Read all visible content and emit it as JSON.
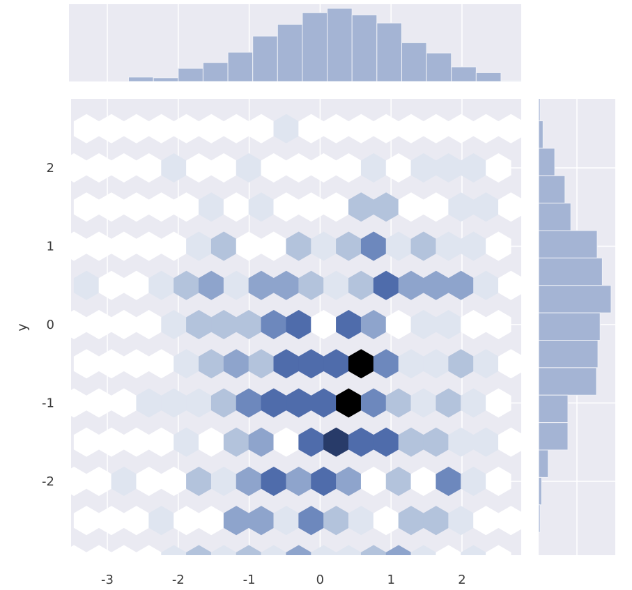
{
  "chart_data": {
    "type": "hexbin-jointplot",
    "xlabel": "",
    "ylabel": "y",
    "xlim": [
      -3.5,
      2.8
    ],
    "ylim": [
      -2.95,
      2.85
    ],
    "x_ticks": [
      -3,
      -2,
      -1,
      0,
      1,
      2
    ],
    "y_ticks": [
      -2,
      -1,
      0,
      1,
      2
    ],
    "x_tick_labels": [
      "-3",
      "-2",
      "-1",
      "0",
      "1",
      "2"
    ],
    "y_tick_labels": [
      "-2",
      "-1",
      "0",
      "1",
      "2"
    ],
    "grid": true,
    "hexbin": {
      "max_count": 10,
      "col_width": 0.352,
      "row_height": 0.5,
      "x_origin": -3.47,
      "y_origin": 0.0,
      "rows": [
        {
          "row": 5,
          "y": 2.5,
          "odd": true,
          "counts": [
            0,
            0,
            0,
            0,
            0,
            0,
            0,
            0,
            1,
            0,
            0,
            0,
            0,
            0,
            0,
            0,
            0,
            0
          ]
        },
        {
          "row": 4,
          "y": 2.0,
          "odd": false,
          "counts": [
            0,
            0,
            0,
            0,
            1,
            0,
            0,
            1,
            0,
            0,
            0,
            0,
            1,
            0,
            1,
            1,
            1,
            0
          ]
        },
        {
          "row": 3,
          "y": 1.5,
          "odd": true,
          "counts": [
            0,
            0,
            0,
            0,
            0,
            1,
            0,
            1,
            0,
            0,
            0,
            2,
            2,
            0,
            0,
            1,
            1,
            0
          ]
        },
        {
          "row": 2,
          "y": 1.0,
          "odd": false,
          "counts": [
            0,
            0,
            0,
            0,
            0,
            1,
            2,
            0,
            0,
            2,
            1,
            2,
            4,
            1,
            2,
            1,
            1,
            0
          ]
        },
        {
          "row": 1,
          "y": 0.5,
          "odd": true,
          "counts": [
            1,
            0,
            0,
            1,
            2,
            3,
            1,
            3,
            3,
            2,
            1,
            2,
            5,
            3,
            3,
            3,
            1,
            0
          ]
        },
        {
          "row": 0,
          "y": 0.0,
          "odd": false,
          "counts": [
            0,
            0,
            0,
            0,
            1,
            2,
            2,
            2,
            4,
            5,
            0,
            5,
            3,
            0,
            1,
            1,
            0,
            0
          ]
        },
        {
          "row": -1,
          "y": -0.5,
          "odd": true,
          "counts": [
            0,
            0,
            0,
            0,
            1,
            2,
            3,
            2,
            5,
            6,
            6,
            10,
            4,
            1,
            1,
            2,
            1,
            0
          ]
        },
        {
          "row": -2,
          "y": -1.0,
          "odd": false,
          "counts": [
            0,
            0,
            0,
            1,
            1,
            1,
            2,
            4,
            6,
            5,
            5,
            10,
            4,
            2,
            1,
            2,
            1,
            0
          ]
        },
        {
          "row": -3,
          "y": -1.5,
          "odd": true,
          "counts": [
            0,
            0,
            0,
            0,
            1,
            0,
            2,
            3,
            0,
            6,
            8,
            5,
            6,
            2,
            2,
            1,
            1,
            0
          ]
        },
        {
          "row": -4,
          "y": -2.0,
          "odd": false,
          "counts": [
            0,
            0,
            1,
            0,
            0,
            2,
            1,
            3,
            5,
            3,
            5,
            3,
            0,
            2,
            0,
            4,
            1,
            0
          ]
        },
        {
          "row": -5,
          "y": -2.5,
          "odd": true,
          "counts": [
            0,
            0,
            0,
            1,
            0,
            0,
            3,
            3,
            1,
            4,
            2,
            1,
            0,
            2,
            2,
            1,
            0,
            0
          ]
        },
        {
          "row": -6,
          "y": -3.0,
          "odd": false,
          "counts": [
            0,
            0,
            0,
            0,
            1,
            2,
            1,
            2,
            1,
            3,
            1,
            1,
            2,
            3,
            1,
            0,
            1,
            0
          ]
        }
      ]
    },
    "x_marginal": {
      "type": "histogram",
      "bins": [
        -3.4,
        -3.05,
        -2.7,
        -2.35,
        -2.0,
        -1.65,
        -1.3,
        -0.95,
        -0.6,
        -0.25,
        0.1,
        0.45,
        0.8,
        1.15,
        1.5,
        1.85,
        2.2,
        2.55
      ],
      "counts": [
        0,
        0,
        6,
        5,
        18,
        26,
        40,
        62,
        78,
        94,
        100,
        91,
        80,
        53,
        39,
        20,
        12,
        1
      ]
    },
    "y_marginal": {
      "type": "histogram",
      "bins": [
        2.6,
        2.25,
        1.9,
        1.55,
        1.2,
        0.85,
        0.5,
        0.15,
        -0.2,
        -0.55,
        -0.9,
        -1.25,
        -1.6,
        -1.95,
        -2.3,
        -2.65
      ],
      "counts": [
        2,
        6,
        22,
        36,
        44,
        80,
        87,
        99,
        84,
        81,
        79,
        40,
        40,
        13,
        4,
        2
      ]
    }
  },
  "colors": {
    "background": "#eaeaf2",
    "grid": "#ffffff",
    "histogram": "#a4b4d4",
    "histogram_edge": "#eef0f6",
    "colormap": [
      "#ffffff",
      "#dfe5f0",
      "#b3c3dc",
      "#8ea4cc",
      "#6d88bd",
      "#4f6cab",
      "#3c5590",
      "#283b69",
      "#141f3d",
      "#000000"
    ]
  }
}
